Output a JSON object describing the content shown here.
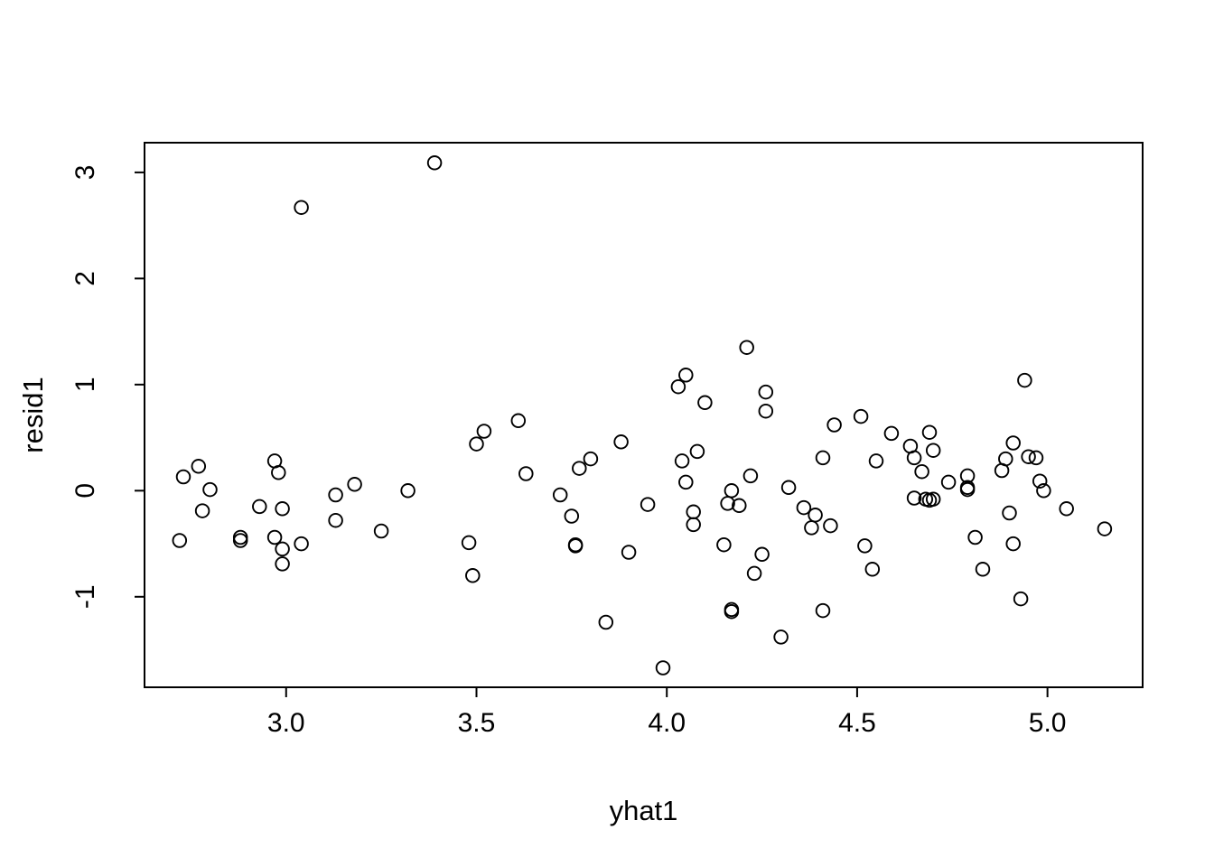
{
  "figure": {
    "background_color": "#ffffff",
    "foreground_color": "#000000"
  },
  "chart_data": {
    "type": "scatter",
    "title": "",
    "xlabel": "yhat1",
    "ylabel": "resid1",
    "xlim": [
      2.628,
      5.25
    ],
    "ylim": [
      -1.853,
      3.28
    ],
    "xticks": [
      3.0,
      3.5,
      4.0,
      4.5,
      5.0
    ],
    "xtick_labels": [
      "3.0",
      "3.5",
      "4.0",
      "4.5",
      "5.0"
    ],
    "yticks": [
      -1,
      0,
      1,
      2,
      3
    ],
    "ytick_labels": [
      "-1",
      "0",
      "1",
      "2",
      "3"
    ],
    "grid": false,
    "legend": null,
    "marker": {
      "shape": "open-circle",
      "radius_px": 7.3,
      "stroke_px": 1.9,
      "color": "#000000"
    },
    "points": [
      [
        3.04,
        2.67
      ],
      [
        3.39,
        3.09
      ],
      [
        4.21,
        1.35
      ],
      [
        4.05,
        1.09
      ],
      [
        4.03,
        0.98
      ],
      [
        4.1,
        0.83
      ],
      [
        4.26,
        0.93
      ],
      [
        4.26,
        0.75
      ],
      [
        4.51,
        0.7
      ],
      [
        4.94,
        1.04
      ],
      [
        2.73,
        0.13
      ],
      [
        2.77,
        0.23
      ],
      [
        2.8,
        0.01
      ],
      [
        2.78,
        -0.19
      ],
      [
        2.72,
        -0.47
      ],
      [
        2.88,
        -0.44
      ],
      [
        2.88,
        -0.47
      ],
      [
        2.97,
        0.28
      ],
      [
        2.98,
        0.17
      ],
      [
        2.93,
        -0.15
      ],
      [
        2.99,
        -0.17
      ],
      [
        2.97,
        -0.44
      ],
      [
        2.99,
        -0.55
      ],
      [
        2.99,
        -0.69
      ],
      [
        3.04,
        -0.5
      ],
      [
        3.13,
        -0.04
      ],
      [
        3.18,
        0.06
      ],
      [
        3.13,
        -0.28
      ],
      [
        3.25,
        -0.38
      ],
      [
        3.52,
        0.56
      ],
      [
        3.5,
        0.44
      ],
      [
        3.61,
        0.66
      ],
      [
        3.63,
        0.16
      ],
      [
        3.32,
        0.0
      ],
      [
        3.72,
        -0.04
      ],
      [
        3.75,
        -0.24
      ],
      [
        3.77,
        0.21
      ],
      [
        3.8,
        0.3
      ],
      [
        3.88,
        0.46
      ],
      [
        3.48,
        -0.49
      ],
      [
        3.49,
        -0.8
      ],
      [
        3.76,
        -0.51
      ],
      [
        3.76,
        -0.52
      ],
      [
        3.9,
        -0.58
      ],
      [
        3.84,
        -1.24
      ],
      [
        4.44,
        0.62
      ],
      [
        4.59,
        0.54
      ],
      [
        4.08,
        0.37
      ],
      [
        4.04,
        0.28
      ],
      [
        4.05,
        0.08
      ],
      [
        4.41,
        0.31
      ],
      [
        4.55,
        0.28
      ],
      [
        4.22,
        0.14
      ],
      [
        4.17,
        0.0
      ],
      [
        4.16,
        -0.12
      ],
      [
        4.19,
        -0.14
      ],
      [
        4.32,
        0.03
      ],
      [
        3.95,
        -0.13
      ],
      [
        4.07,
        -0.2
      ],
      [
        4.07,
        -0.32
      ],
      [
        4.36,
        -0.16
      ],
      [
        4.39,
        -0.23
      ],
      [
        4.38,
        -0.35
      ],
      [
        4.43,
        -0.33
      ],
      [
        4.15,
        -0.51
      ],
      [
        4.25,
        -0.6
      ],
      [
        4.23,
        -0.78
      ],
      [
        4.52,
        -0.52
      ],
      [
        4.54,
        -0.74
      ],
      [
        4.17,
        -1.12
      ],
      [
        4.17,
        -1.14
      ],
      [
        4.41,
        -1.13
      ],
      [
        4.3,
        -1.38
      ],
      [
        3.99,
        -1.67
      ],
      [
        4.69,
        0.55
      ],
      [
        4.64,
        0.42
      ],
      [
        4.65,
        0.31
      ],
      [
        4.7,
        0.38
      ],
      [
        4.67,
        0.18
      ],
      [
        4.74,
        0.08
      ],
      [
        4.79,
        0.14
      ],
      [
        4.79,
        0.03
      ],
      [
        4.79,
        0.01
      ],
      [
        4.65,
        -0.07
      ],
      [
        4.68,
        -0.08
      ],
      [
        4.69,
        -0.09
      ],
      [
        4.7,
        -0.08
      ],
      [
        4.91,
        0.45
      ],
      [
        4.89,
        0.3
      ],
      [
        4.88,
        0.19
      ],
      [
        4.95,
        0.32
      ],
      [
        4.97,
        0.31
      ],
      [
        4.98,
        0.09
      ],
      [
        4.99,
        0.0
      ],
      [
        4.9,
        -0.21
      ],
      [
        5.05,
        -0.17
      ],
      [
        5.15,
        -0.36
      ],
      [
        4.81,
        -0.44
      ],
      [
        4.91,
        -0.5
      ],
      [
        4.83,
        -0.74
      ],
      [
        4.93,
        -1.02
      ]
    ]
  }
}
